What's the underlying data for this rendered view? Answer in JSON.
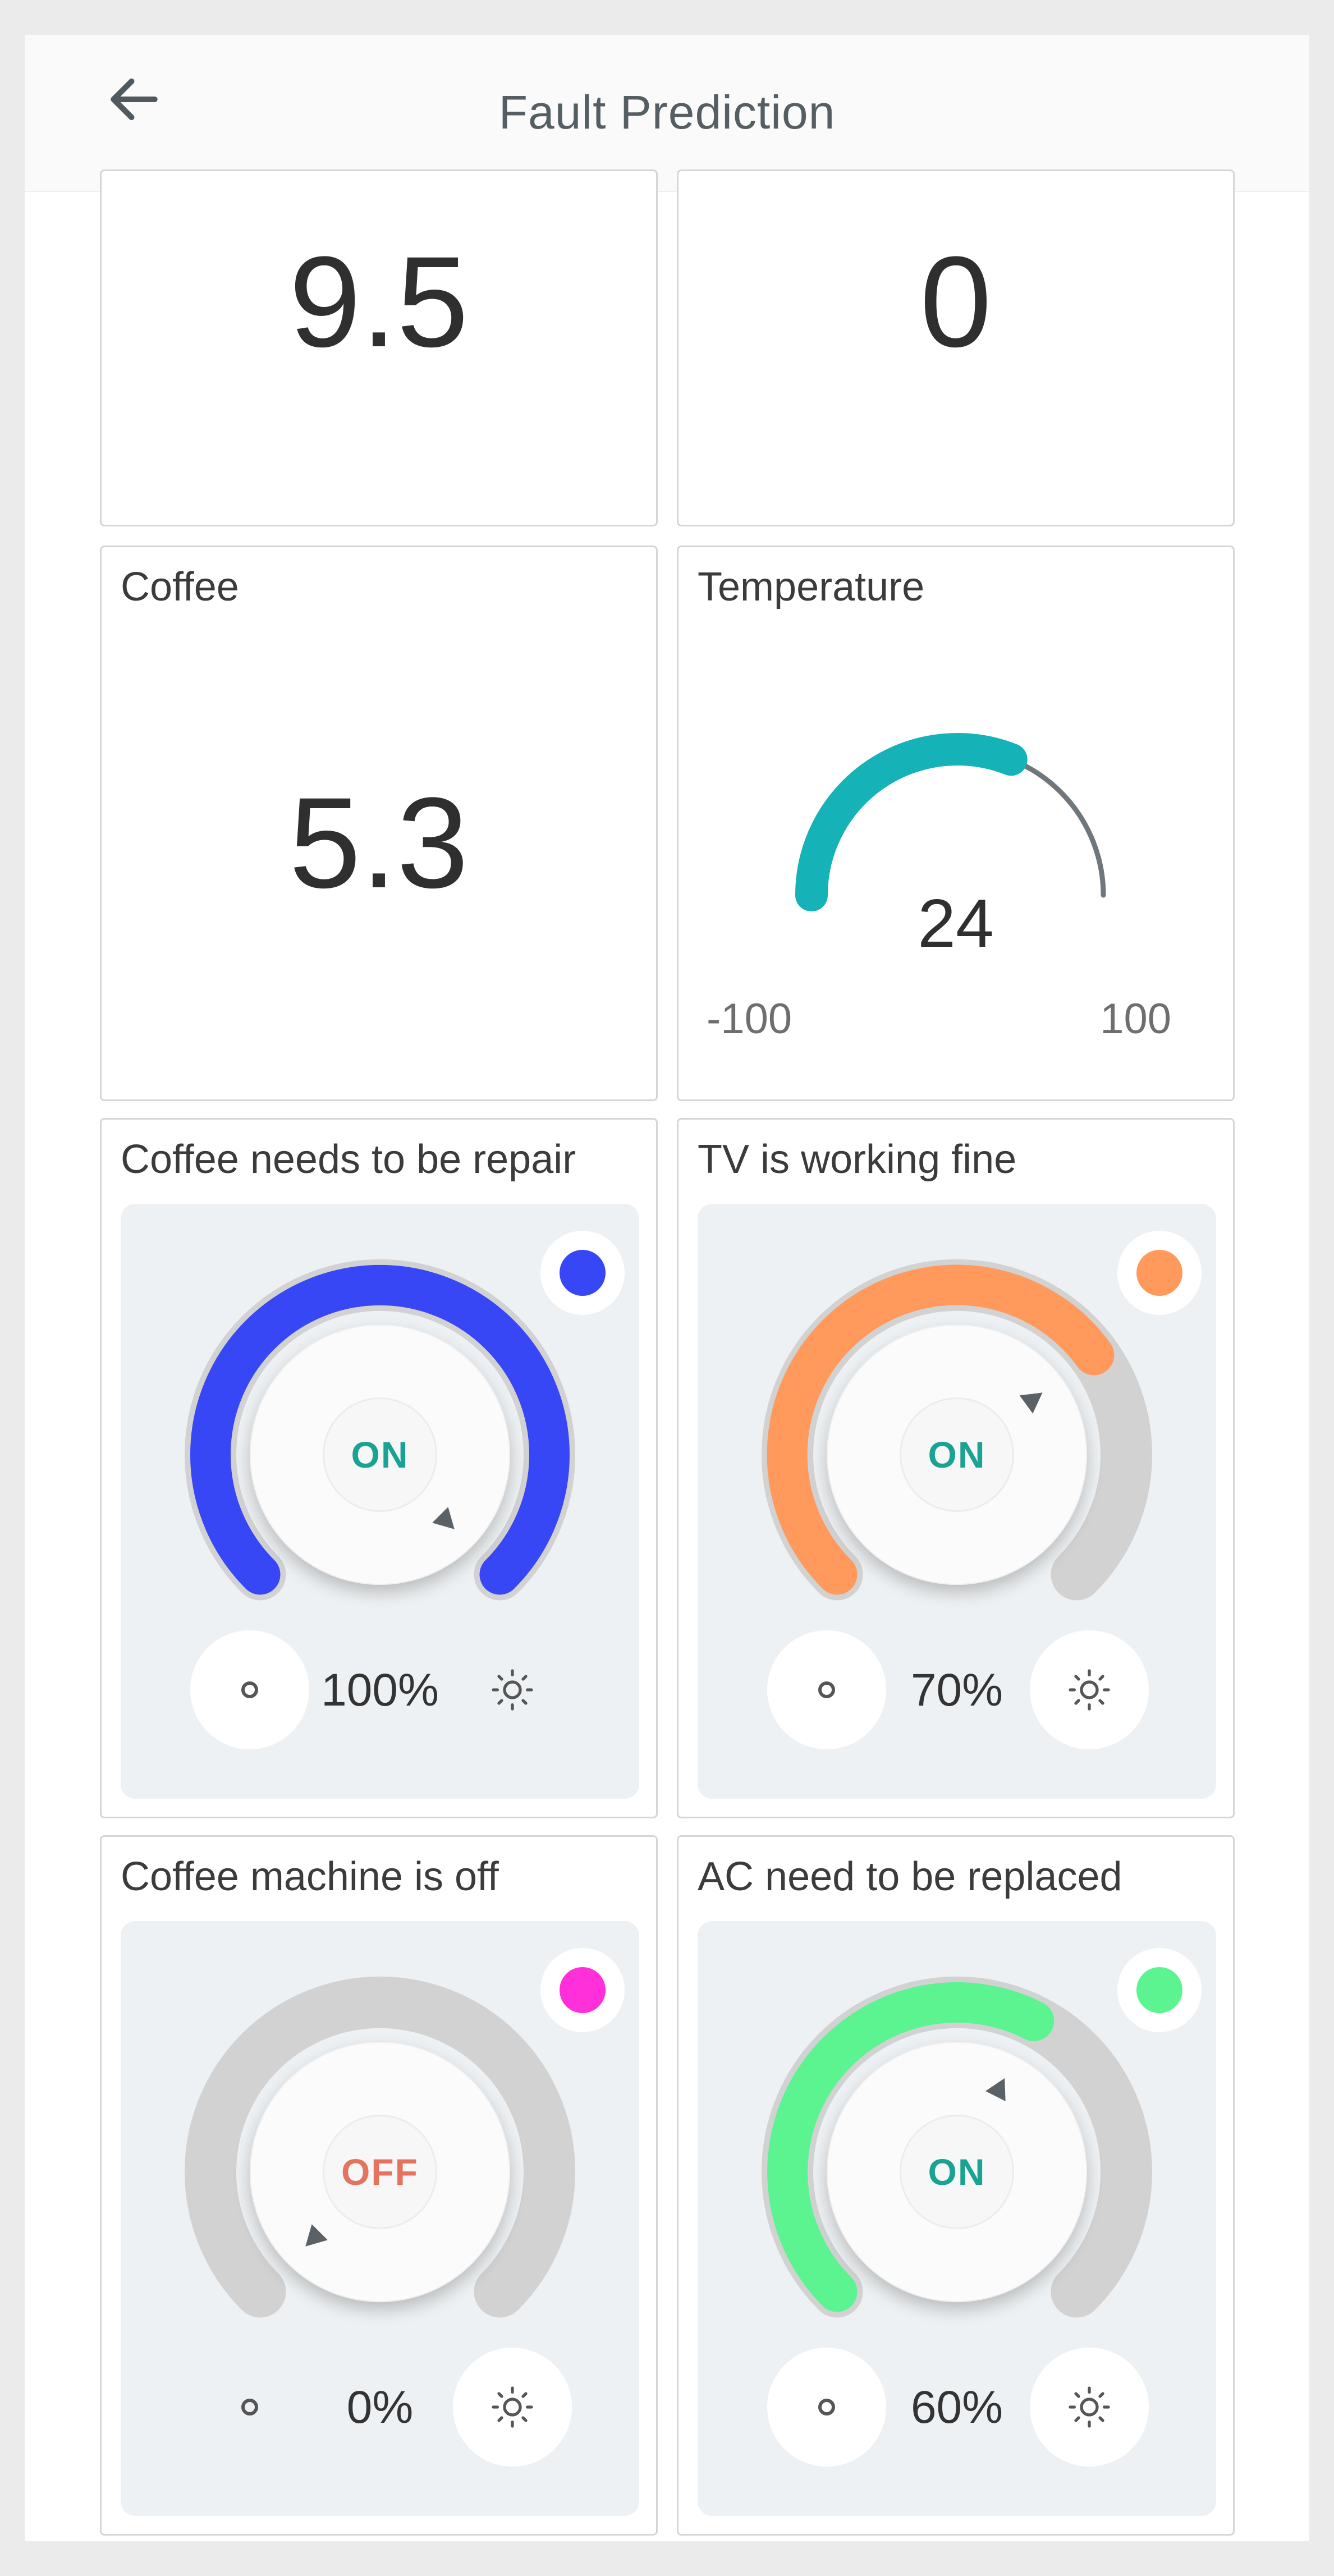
{
  "header": {
    "title": "Fault Prediction",
    "back_icon": "arrow-left-icon"
  },
  "top_cards": [
    {
      "value": "9.5"
    },
    {
      "value": "0"
    }
  ],
  "coffee_card": {
    "title": "Coffee",
    "value": "5.3"
  },
  "temperature_card": {
    "title": "Temperature",
    "value": "24",
    "min": "-100",
    "max": "100",
    "value_num": 24,
    "min_num": -100,
    "max_num": 100,
    "color": "#15b3b8"
  },
  "dials": [
    {
      "title": "Coffee needs to be repair",
      "state": "ON",
      "percent": "100%",
      "level": 1.0,
      "color": "#3847f5",
      "state_color": "#1aa293",
      "power_white": true,
      "light_white": false
    },
    {
      "title": "TV is working fine",
      "state": "ON",
      "percent": "70%",
      "level": 0.7,
      "color": "#ff9a5c",
      "state_color": "#1aa293",
      "power_white": true,
      "light_white": true
    },
    {
      "title": "Coffee machine is off",
      "state": "OFF",
      "percent": "0%",
      "level": 0.0,
      "color": "#ff2fd9",
      "state_color": "#e4735f",
      "power_white": false,
      "light_white": true
    },
    {
      "title": "AC need to be replaced",
      "state": "ON",
      "percent": "60%",
      "level": 0.6,
      "color": "#5cf391",
      "state_color": "#1aa293",
      "power_white": true,
      "light_white": true
    }
  ],
  "icons": {
    "power": "power-icon",
    "light": "brightness-icon"
  }
}
